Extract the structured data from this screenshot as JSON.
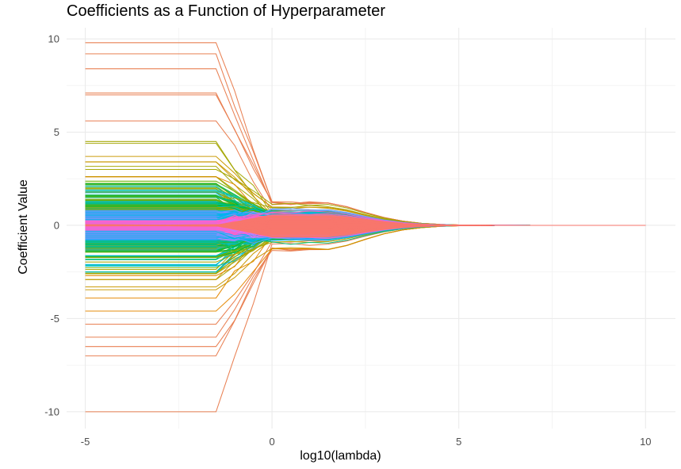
{
  "chart_data": {
    "type": "line",
    "title": "Coefficients as a Function of Hyperparameter",
    "xlabel": "log10(lambda)",
    "ylabel": "Coefficient Value",
    "xlim": [
      -5.5,
      10.8
    ],
    "ylim": [
      -10.9,
      10.6
    ],
    "x_ticks": [
      -5,
      0,
      5,
      10
    ],
    "x_tick_labels": [
      "-5",
      "0",
      "5",
      "10"
    ],
    "y_ticks": [
      -10,
      -5,
      0,
      5,
      10
    ],
    "y_tick_labels": [
      "-10",
      "-5",
      "0",
      "5",
      "10"
    ],
    "grid": true,
    "legend": "none",
    "x": [
      -5,
      -1.5,
      -1,
      -0.5,
      0,
      0.5,
      1,
      1.5,
      2,
      2.5,
      3,
      3.5,
      4,
      4.5,
      5,
      6,
      7,
      8,
      9,
      10
    ],
    "series_summary": {
      "count": 800,
      "description_values_at_lambda_min": "coefficients span approximately -10 to 9.8, mostly within -3 to 3",
      "shrink_to_zero_by": 6
    },
    "series_example_start_values": [
      9.8,
      9.2,
      8.4,
      7.1,
      7.0,
      5.6,
      4.5,
      4.4,
      3.7,
      3.4,
      3.0,
      2.6,
      2.2,
      1.9,
      1.5,
      1.1,
      0.8,
      0.5,
      0.3,
      0.1,
      -0.1,
      -0.4,
      -0.7,
      -1.0,
      -1.3,
      -1.7,
      -2.1,
      -2.5,
      -2.9,
      -3.3,
      -3.9,
      -4.6,
      -5.3,
      -6.0,
      -6.5,
      -7.0,
      -10.0
    ],
    "palette": [
      "#F8766D",
      "#E58700",
      "#C99800",
      "#A3A500",
      "#6BB100",
      "#00BA38",
      "#00BF7D",
      "#00C0AF",
      "#00BCD8",
      "#00B0F6",
      "#619CFF",
      "#B983FF",
      "#E76BF3",
      "#FD61D1",
      "#FF67A4"
    ],
    "highlight_colors": {
      "outer": "#E87A4B",
      "center": "#FF6B81",
      "near_zero": "#FF61C3"
    }
  }
}
